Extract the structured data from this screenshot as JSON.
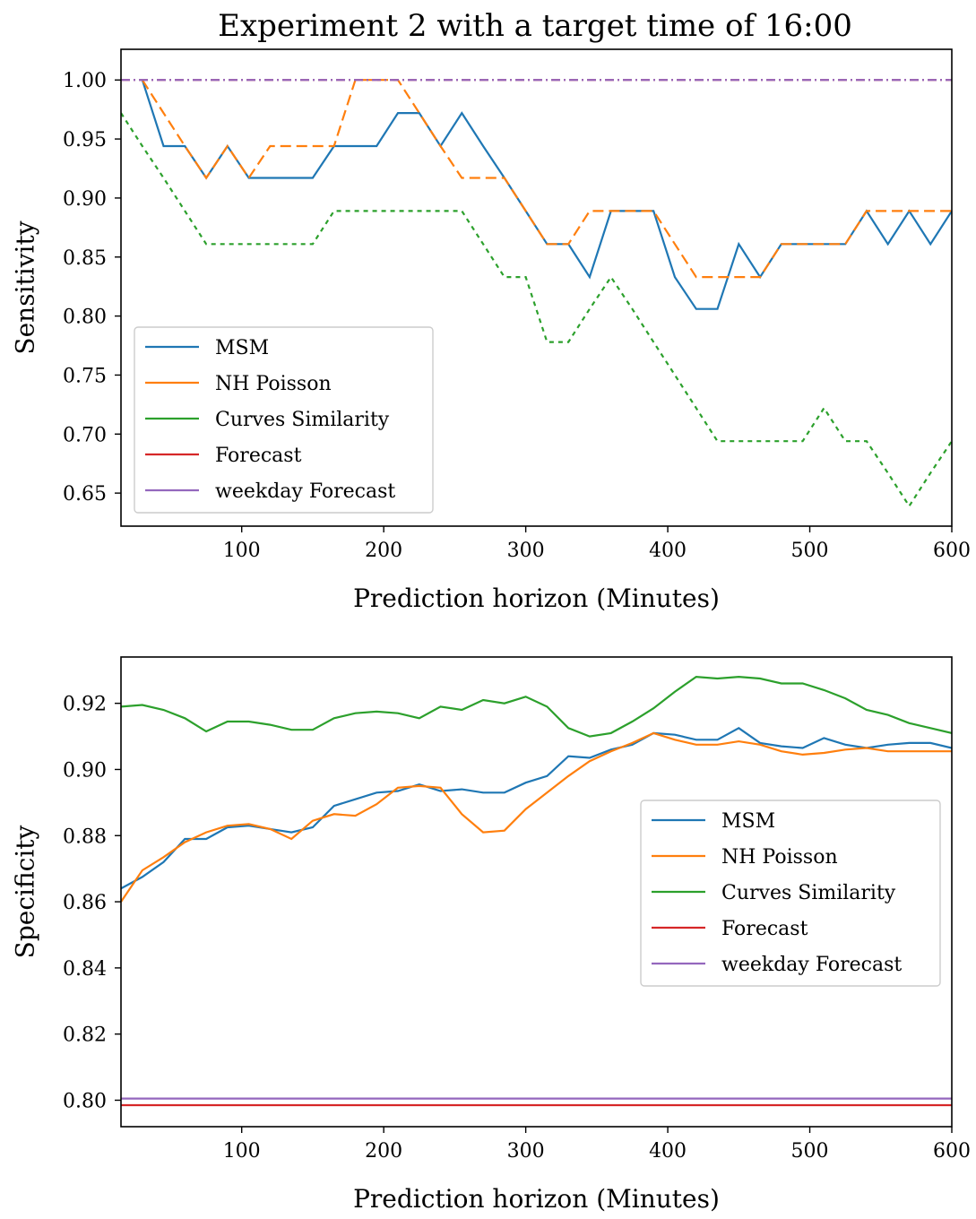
{
  "title": "Experiment 2 with a target time of 16:00",
  "colors": {
    "MSM": "#1f77b4",
    "NH Poisson": "#ff7f0e",
    "Curves Similarity": "#2ca02c",
    "Forecast": "#d62728",
    "weekday Forecast": "#9467bd"
  },
  "chart_data": [
    {
      "type": "line",
      "xlabel": "Prediction horizon (Minutes)",
      "ylabel": "Sensitivity",
      "xlim": [
        15,
        600
      ],
      "ylim": [
        0.622,
        1.026
      ],
      "xticks": [
        100,
        200,
        300,
        400,
        500,
        600
      ],
      "yticks": [
        0.65,
        0.7,
        0.75,
        0.8,
        0.85,
        0.9,
        0.95,
        1.0
      ],
      "legend_position": "lower-left",
      "series": [
        {
          "name": "MSM",
          "style": "solid",
          "x": [
            30,
            45,
            60,
            75,
            90,
            105,
            120,
            135,
            150,
            165,
            180,
            195,
            210,
            225,
            240,
            255,
            270,
            285,
            300,
            315,
            330,
            345,
            360,
            375,
            390,
            405,
            420,
            435,
            450,
            465,
            480,
            495,
            510,
            525,
            540,
            555,
            570,
            585,
            600
          ],
          "y": [
            1.0,
            0.944,
            0.944,
            0.917,
            0.944,
            0.917,
            0.917,
            0.917,
            0.917,
            0.944,
            0.944,
            0.944,
            0.972,
            0.972,
            0.944,
            0.972,
            0.944,
            0.917,
            0.889,
            0.861,
            0.861,
            0.833,
            0.889,
            0.889,
            0.889,
            0.833,
            0.806,
            0.806,
            0.861,
            0.833,
            0.861,
            0.861,
            0.861,
            0.861,
            0.889,
            0.861,
            0.889,
            0.861,
            0.889
          ]
        },
        {
          "name": "NH Poisson",
          "style": "dashed",
          "x": [
            30,
            45,
            60,
            75,
            90,
            105,
            120,
            135,
            150,
            165,
            180,
            195,
            210,
            225,
            240,
            255,
            270,
            285,
            300,
            315,
            330,
            345,
            360,
            375,
            390,
            405,
            420,
            435,
            450,
            465,
            480,
            495,
            510,
            525,
            540,
            555,
            570,
            585,
            600
          ],
          "y": [
            1.0,
            0.972,
            0.944,
            0.917,
            0.944,
            0.917,
            0.944,
            0.944,
            0.944,
            0.944,
            1.0,
            1.0,
            1.0,
            0.972,
            0.944,
            0.917,
            0.917,
            0.917,
            0.889,
            0.861,
            0.861,
            0.889,
            0.889,
            0.889,
            0.889,
            0.861,
            0.833,
            0.833,
            0.833,
            0.833,
            0.861,
            0.861,
            0.861,
            0.861,
            0.889,
            0.889,
            0.889,
            0.889,
            0.889
          ]
        },
        {
          "name": "Curves Similarity",
          "style": "dotted",
          "x": [
            15,
            30,
            45,
            60,
            75,
            90,
            105,
            120,
            135,
            150,
            165,
            180,
            195,
            210,
            225,
            240,
            255,
            270,
            285,
            300,
            315,
            330,
            345,
            360,
            375,
            390,
            405,
            420,
            435,
            450,
            465,
            480,
            495,
            510,
            525,
            540,
            555,
            570,
            585,
            600
          ],
          "y": [
            0.972,
            0.944,
            0.917,
            0.889,
            0.861,
            0.861,
            0.861,
            0.861,
            0.861,
            0.861,
            0.889,
            0.889,
            0.889,
            0.889,
            0.889,
            0.889,
            0.889,
            0.861,
            0.833,
            0.833,
            0.778,
            0.778,
            0.806,
            0.833,
            0.806,
            0.778,
            0.75,
            0.722,
            0.694,
            0.694,
            0.694,
            0.694,
            0.694,
            0.722,
            0.694,
            0.694,
            0.667,
            0.639,
            0.667,
            0.694
          ]
        },
        {
          "name": "Forecast",
          "style": "dashdot",
          "x": [
            15,
            600
          ],
          "y": [
            1.0,
            1.0
          ]
        },
        {
          "name": "weekday Forecast",
          "style": "dashdot",
          "x": [
            15,
            600
          ],
          "y": [
            1.0,
            1.0
          ]
        }
      ]
    },
    {
      "type": "line",
      "xlabel": "Prediction horizon (Minutes)",
      "ylabel": "Specificity",
      "xlim": [
        15,
        600
      ],
      "ylim": [
        0.792,
        0.934
      ],
      "xticks": [
        100,
        200,
        300,
        400,
        500,
        600
      ],
      "yticks": [
        0.8,
        0.82,
        0.84,
        0.86,
        0.88,
        0.9,
        0.92
      ],
      "legend_position": "center-right",
      "series": [
        {
          "name": "MSM",
          "style": "solid",
          "x": [
            15,
            30,
            45,
            60,
            75,
            90,
            105,
            120,
            135,
            150,
            165,
            180,
            195,
            210,
            225,
            240,
            255,
            270,
            285,
            300,
            315,
            330,
            345,
            360,
            375,
            390,
            405,
            420,
            435,
            450,
            465,
            480,
            495,
            510,
            525,
            540,
            555,
            570,
            585,
            600
          ],
          "y": [
            0.864,
            0.8675,
            0.872,
            0.879,
            0.879,
            0.8825,
            0.883,
            0.882,
            0.881,
            0.8825,
            0.889,
            0.891,
            0.893,
            0.8935,
            0.8955,
            0.8935,
            0.894,
            0.893,
            0.893,
            0.896,
            0.898,
            0.904,
            0.9035,
            0.906,
            0.9075,
            0.911,
            0.9105,
            0.909,
            0.909,
            0.9125,
            0.908,
            0.907,
            0.9065,
            0.9095,
            0.9075,
            0.9065,
            0.9075,
            0.908,
            0.908,
            0.9065
          ]
        },
        {
          "name": "NH Poisson",
          "style": "solid",
          "x": [
            15,
            30,
            45,
            60,
            75,
            90,
            105,
            120,
            135,
            150,
            165,
            180,
            195,
            210,
            225,
            240,
            255,
            270,
            285,
            300,
            315,
            330,
            345,
            360,
            375,
            390,
            405,
            420,
            435,
            450,
            465,
            480,
            495,
            510,
            525,
            540,
            555,
            570,
            585,
            600
          ],
          "y": [
            0.86,
            0.8695,
            0.8735,
            0.878,
            0.881,
            0.883,
            0.8835,
            0.882,
            0.879,
            0.8845,
            0.8865,
            0.886,
            0.8895,
            0.8945,
            0.895,
            0.8945,
            0.8865,
            0.881,
            0.8815,
            0.888,
            0.893,
            0.898,
            0.9025,
            0.9055,
            0.908,
            0.911,
            0.909,
            0.9075,
            0.9075,
            0.9085,
            0.9075,
            0.9055,
            0.9045,
            0.905,
            0.906,
            0.9065,
            0.9055,
            0.9055,
            0.9055,
            0.9055
          ]
        },
        {
          "name": "Curves Similarity",
          "style": "solid",
          "x": [
            15,
            30,
            45,
            60,
            75,
            90,
            105,
            120,
            135,
            150,
            165,
            180,
            195,
            210,
            225,
            240,
            255,
            270,
            285,
            300,
            315,
            330,
            345,
            360,
            375,
            390,
            405,
            420,
            435,
            450,
            465,
            480,
            495,
            510,
            525,
            540,
            555,
            570,
            585,
            600
          ],
          "y": [
            0.919,
            0.9195,
            0.918,
            0.9155,
            0.9115,
            0.9145,
            0.9145,
            0.9135,
            0.912,
            0.912,
            0.9155,
            0.917,
            0.9175,
            0.917,
            0.9155,
            0.919,
            0.918,
            0.921,
            0.92,
            0.922,
            0.919,
            0.9125,
            0.91,
            0.911,
            0.9145,
            0.9185,
            0.9235,
            0.928,
            0.9275,
            0.928,
            0.9275,
            0.926,
            0.926,
            0.924,
            0.9215,
            0.918,
            0.9165,
            0.914,
            0.9125,
            0.911
          ]
        },
        {
          "name": "Forecast",
          "style": "solid",
          "x": [
            15,
            600
          ],
          "y": [
            0.7985,
            0.7985
          ]
        },
        {
          "name": "weekday Forecast",
          "style": "solid",
          "x": [
            15,
            600
          ],
          "y": [
            0.8005,
            0.8005
          ]
        }
      ]
    }
  ]
}
